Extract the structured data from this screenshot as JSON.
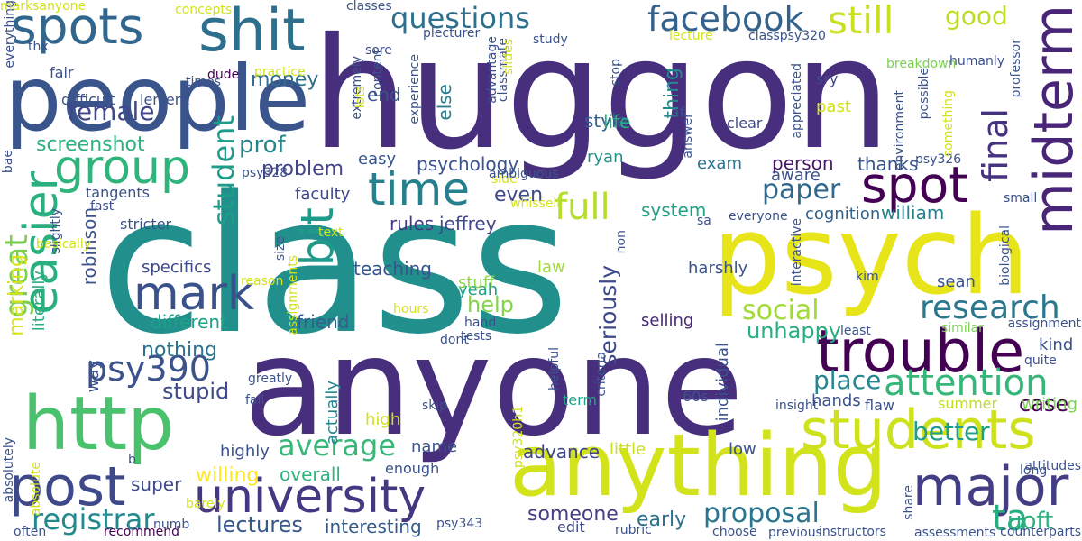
{
  "words": [
    {
      "text": "huggon",
      "color": "#472f7d"
    },
    {
      "text": "class",
      "color": "#21908d"
    },
    {
      "text": "anyone",
      "color": "#472f7d"
    },
    {
      "text": "psych",
      "color": "#e7e419"
    },
    {
      "text": "people",
      "color": "#3a548c"
    },
    {
      "text": "anything",
      "color": "#d2e21b"
    },
    {
      "text": "http",
      "color": "#4ac16d"
    },
    {
      "text": "spots",
      "color": "#31678e"
    },
    {
      "text": "shit",
      "color": "#2e6f8e"
    },
    {
      "text": "trouble",
      "color": "#440154"
    },
    {
      "text": "university",
      "color": "#453781"
    },
    {
      "text": "midterm",
      "color": "#482576"
    },
    {
      "text": "students",
      "color": "#cde11d"
    },
    {
      "text": "group",
      "color": "#2fb47c"
    },
    {
      "text": "spot",
      "color": "#440154"
    },
    {
      "text": "mark",
      "color": "#3b518b"
    },
    {
      "text": "post",
      "color": "#3e4989"
    },
    {
      "text": "major",
      "color": "#433d84"
    },
    {
      "text": "easier",
      "color": "#2ab07f"
    },
    {
      "text": "time",
      "color": "#26818e"
    },
    {
      "text": "facebook",
      "color": "#33628d"
    },
    {
      "text": "questions",
      "color": "#2d708e"
    },
    {
      "text": "still",
      "color": "#c8e020"
    },
    {
      "text": "bit",
      "color": "#1f9a8a"
    },
    {
      "text": "psy390",
      "color": "#3b528b"
    },
    {
      "text": "attention",
      "color": "#35b779"
    },
    {
      "text": "research",
      "color": "#2a778e"
    },
    {
      "text": "full",
      "color": "#b5de2b"
    },
    {
      "text": "paper",
      "color": "#31688e"
    },
    {
      "text": "registrar",
      "color": "#23898e"
    },
    {
      "text": "average",
      "color": "#37b878"
    },
    {
      "text": "great",
      "color": "#7ad151"
    },
    {
      "text": "student",
      "color": "#1e9c89"
    },
    {
      "text": "female",
      "color": "#3f4788"
    },
    {
      "text": "social",
      "color": "#a2da37"
    },
    {
      "text": "good",
      "color": "#bade28"
    },
    {
      "text": "ta",
      "color": "#26ad81"
    },
    {
      "text": "final",
      "color": "#46337f"
    },
    {
      "text": "proposal",
      "color": "#2a768e"
    },
    {
      "text": "lectures",
      "color": "#38588c"
    },
    {
      "text": "marking",
      "color": "#d8e219"
    },
    {
      "text": "stupid",
      "color": "#3e4a89"
    },
    {
      "text": "place",
      "color": "#24868e"
    },
    {
      "text": "uoft",
      "color": "#2db27d"
    },
    {
      "text": "prof",
      "color": "#24878e"
    },
    {
      "text": "money",
      "color": "#2e6f8e"
    },
    {
      "text": "screenshot",
      "color": "#2db27d"
    },
    {
      "text": "nothing",
      "color": "#2c728e"
    },
    {
      "text": "psychology",
      "color": "#3b528b"
    },
    {
      "text": "problem",
      "color": "#414487"
    },
    {
      "text": "style",
      "color": "#355f8d"
    },
    {
      "text": "end",
      "color": "#3b528b"
    },
    {
      "text": "seriously",
      "color": "#3e4989"
    },
    {
      "text": "help",
      "color": "#84d44b"
    },
    {
      "text": "unhappy",
      "color": "#28ae80"
    },
    {
      "text": "better",
      "color": "#1f9e89"
    },
    {
      "text": "case",
      "color": "#440154"
    },
    {
      "text": "someone",
      "color": "#433e85"
    },
    {
      "text": "early",
      "color": "#2c728e"
    },
    {
      "text": "system",
      "color": "#20a386"
    },
    {
      "text": "william",
      "color": "#25848e"
    },
    {
      "text": "person",
      "color": "#481769"
    },
    {
      "text": "thanks",
      "color": "#39568c"
    },
    {
      "text": "robinson",
      "color": "#3b528b"
    },
    {
      "text": "super",
      "color": "#3e4a89"
    },
    {
      "text": "overall",
      "color": "#2fb47c"
    },
    {
      "text": "willing",
      "color": "#fde725"
    },
    {
      "text": "interesting",
      "color": "#365c8d"
    },
    {
      "text": "advance",
      "color": "#3f4788"
    },
    {
      "text": "even",
      "color": "#3e4989"
    },
    {
      "text": "thing",
      "color": "#238a8d"
    },
    {
      "text": "else",
      "color": "#287c8e"
    },
    {
      "text": "teaching",
      "color": "#39568c"
    },
    {
      "text": "friend",
      "color": "#355f8d"
    },
    {
      "text": "different",
      "color": "#1fa088"
    },
    {
      "text": "literally",
      "color": "#29af7f"
    },
    {
      "text": "specifics",
      "color": "#3e4989"
    },
    {
      "text": "cognition",
      "color": "#33638d"
    },
    {
      "text": "faculty",
      "color": "#3e4989"
    },
    {
      "text": "rules",
      "color": "#443983"
    },
    {
      "text": "jeffrey",
      "color": "#3f4889"
    },
    {
      "text": "easy",
      "color": "#39568c"
    },
    {
      "text": "ryan",
      "color": "#21918c"
    },
    {
      "text": "exam",
      "color": "#2c728e"
    },
    {
      "text": "aware",
      "color": "#3b528b"
    },
    {
      "text": "life",
      "color": "#29af7f"
    },
    {
      "text": "law",
      "color": "#a0da39"
    },
    {
      "text": "yeah",
      "color": "#1fa187"
    },
    {
      "text": "stuff",
      "color": "#8bd646"
    },
    {
      "text": "selling",
      "color": "#482979"
    },
    {
      "text": "harshly",
      "color": "#3b528b"
    },
    {
      "text": "sean",
      "color": "#3b528b"
    },
    {
      "text": "kind",
      "color": "#3b528b"
    },
    {
      "text": "way",
      "color": "#3b528b"
    },
    {
      "text": "high",
      "color": "#d0e11c"
    },
    {
      "text": "name",
      "color": "#3b528b"
    },
    {
      "text": "little",
      "color": "#c8e020"
    },
    {
      "text": "highly",
      "color": "#3b528b"
    },
    {
      "text": "actually",
      "color": "#25858e"
    },
    {
      "text": "individual",
      "color": "#3b528b"
    },
    {
      "text": "low",
      "color": "#3b528b"
    },
    {
      "text": "hands",
      "color": "#3b528b"
    },
    {
      "text": "flaw",
      "color": "#3b528b"
    },
    {
      "text": "writing",
      "color": "#7ad151"
    },
    {
      "text": "summer",
      "color": "#bddf26"
    },
    {
      "text": "60s",
      "color": "#3b528b"
    },
    {
      "text": "term",
      "color": "#20a386"
    },
    {
      "text": "past",
      "color": "#d2e21b"
    },
    {
      "text": "sry",
      "color": "#3e4989"
    },
    {
      "text": "clear",
      "color": "#3e4989"
    },
    {
      "text": "af",
      "color": "#3b528b"
    },
    {
      "text": "edit",
      "color": "#3e4989"
    },
    {
      "text": "enough",
      "color": "#3b528b"
    },
    {
      "text": "tangents",
      "color": "#3b528b"
    },
    {
      "text": "stricter",
      "color": "#3b528b"
    },
    {
      "text": "fair",
      "color": "#3b528b"
    },
    {
      "text": "difficult",
      "color": "#3b528b"
    },
    {
      "text": "lenient",
      "color": "#3b528b"
    },
    {
      "text": "dude",
      "color": "#440154"
    },
    {
      "text": "thx",
      "color": "#3b528b"
    },
    {
      "text": "times",
      "color": "#3b528b"
    },
    {
      "text": "practice",
      "color": "#d2e21b"
    },
    {
      "text": "concepts",
      "color": "#d2e21b"
    },
    {
      "text": "classes",
      "color": "#3b528b"
    },
    {
      "text": "sore",
      "color": "#3b528b"
    },
    {
      "text": "plecturer",
      "color": "#3b528b"
    },
    {
      "text": "study",
      "color": "#3b528b"
    },
    {
      "text": "lecture",
      "color": "#d2e21b"
    },
    {
      "text": "classpsy320",
      "color": "#3b528b"
    },
    {
      "text": "breakdown",
      "color": "#7ad151"
    },
    {
      "text": "humanly",
      "color": "#3b528b"
    },
    {
      "text": "professor",
      "color": "#3b528b"
    },
    {
      "text": "everything",
      "color": "#3b528b"
    },
    {
      "text": "psy326",
      "color": "#3b528b"
    },
    {
      "text": "small",
      "color": "#3b528b"
    },
    {
      "text": "biological",
      "color": "#3b528b"
    },
    {
      "text": "kim",
      "color": "#3b528b"
    },
    {
      "text": "assignment",
      "color": "#3b528b"
    },
    {
      "text": "similar",
      "color": "#7ad151"
    },
    {
      "text": "least",
      "color": "#3b528b"
    },
    {
      "text": "quite",
      "color": "#3b528b"
    },
    {
      "text": "insight",
      "color": "#3b528b"
    },
    {
      "text": "long",
      "color": "#3b528b"
    },
    {
      "text": "attitudes",
      "color": "#3b528b"
    },
    {
      "text": "share",
      "color": "#3b528b"
    },
    {
      "text": "counterparts",
      "color": "#3b528b"
    },
    {
      "text": "assessments",
      "color": "#3b528b"
    },
    {
      "text": "previous",
      "color": "#3b528b"
    },
    {
      "text": "choose",
      "color": "#3b528b"
    },
    {
      "text": "instructors",
      "color": "#3b528b"
    },
    {
      "text": "rubric",
      "color": "#3b528b"
    },
    {
      "text": "psy343",
      "color": "#3b528b"
    },
    {
      "text": "recommend",
      "color": "#440154"
    },
    {
      "text": "often",
      "color": "#3b528b"
    },
    {
      "text": "absolute",
      "color": "#d2e21b"
    },
    {
      "text": "absolutely",
      "color": "#3b528b"
    },
    {
      "text": "numb",
      "color": "#3b528b"
    },
    {
      "text": "b",
      "color": "#3b528b"
    },
    {
      "text": "barely",
      "color": "#d2e21b"
    },
    {
      "text": "fall",
      "color": "#3b528b"
    },
    {
      "text": "greatly",
      "color": "#3b528b"
    },
    {
      "text": "skip",
      "color": "#3b528b"
    },
    {
      "text": "dont",
      "color": "#3b528b"
    },
    {
      "text": "tests",
      "color": "#3b528b"
    },
    {
      "text": "hours",
      "color": "#d2e21b"
    },
    {
      "text": "hand",
      "color": "#3b528b"
    },
    {
      "text": "whissell",
      "color": "#d2e21b"
    },
    {
      "text": "side",
      "color": "#d2e21b"
    },
    {
      "text": "ambiguous",
      "color": "#3b528b"
    },
    {
      "text": "text",
      "color": "#d2e21b"
    },
    {
      "text": "fast",
      "color": "#3b528b"
    },
    {
      "text": "slightly",
      "color": "#3b528b"
    },
    {
      "text": "basically",
      "color": "#d2e21b"
    },
    {
      "text": "psy328",
      "color": "#3b528b"
    },
    {
      "text": "bae",
      "color": "#3b528b"
    },
    {
      "text": "everyone",
      "color": "#3b528b"
    },
    {
      "text": "sa",
      "color": "#3b528b"
    },
    {
      "text": "reason",
      "color": "#d2e21b"
    },
    {
      "text": "size",
      "color": "#3b528b"
    },
    {
      "text": "assignments",
      "color": "#d2e21b"
    },
    {
      "text": "interactive",
      "color": "#3b528b"
    },
    {
      "text": "appreciated",
      "color": "#3b528b"
    },
    {
      "text": "environment",
      "color": "#3b528b"
    },
    {
      "text": "possible",
      "color": "#3b528b"
    },
    {
      "text": "something",
      "color": "#d2e21b"
    },
    {
      "text": "extremely",
      "color": "#3b528b"
    },
    {
      "text": "experience",
      "color": "#3b528b"
    },
    {
      "text": "advantage",
      "color": "#3b528b"
    },
    {
      "text": "classmate",
      "color": "#3b528b"
    },
    {
      "text": "content",
      "color": "#3b528b"
    },
    {
      "text": "slides",
      "color": "#d2e21b"
    },
    {
      "text": "lots",
      "color": "#d2e21b"
    },
    {
      "text": "stop",
      "color": "#3b528b"
    },
    {
      "text": "non",
      "color": "#3b528b"
    },
    {
      "text": "answer",
      "color": "#3b528b"
    },
    {
      "text": "psy320h1",
      "color": "#d2e21b"
    },
    {
      "text": "helpful",
      "color": "#3b528b"
    },
    {
      "text": "criteria",
      "color": "#3b528b"
    },
    {
      "text": "marksanyone",
      "color": "#d2e21b"
    }
  ]
}
